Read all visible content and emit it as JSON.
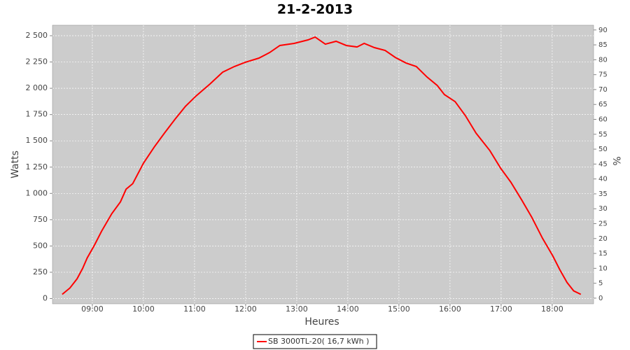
{
  "chart_data": {
    "type": "line",
    "title": "21-2-2013",
    "x_label": "Heures",
    "y_label": "Watts",
    "y2_label": "%",
    "xlim": [
      8.22,
      18.81
    ],
    "xticks": [
      {
        "value": 9,
        "label": "09:00"
      },
      {
        "value": 10,
        "label": "10:00"
      },
      {
        "value": 11,
        "label": "11:00"
      },
      {
        "value": 12,
        "label": "12:00"
      },
      {
        "value": 13,
        "label": "13:00"
      },
      {
        "value": 14,
        "label": "14:00"
      },
      {
        "value": 15,
        "label": "15:00"
      },
      {
        "value": 16,
        "label": "16:00"
      },
      {
        "value": 17,
        "label": "17:00"
      },
      {
        "value": 18,
        "label": "18:00"
      }
    ],
    "ylim": [
      -50,
      2600
    ],
    "yticks": [
      0,
      250,
      500,
      750,
      {
        "value": 1000,
        "label": "1 000"
      },
      {
        "value": 1250,
        "label": "1 250"
      },
      {
        "value": 1500,
        "label": "1 500"
      },
      {
        "value": 1750,
        "label": "1 750"
      },
      {
        "value": 2000,
        "label": "2 000"
      },
      {
        "value": 2250,
        "label": "2 250"
      },
      {
        "value": 2500,
        "label": "2 500"
      }
    ],
    "y2lim": [
      -1.9,
      91.6
    ],
    "y2ticks": [
      0,
      5,
      10,
      15,
      20,
      25,
      30,
      35,
      40,
      45,
      50,
      55,
      60,
      65,
      70,
      75,
      80,
      85,
      90
    ],
    "grid": true,
    "legend": "bottom",
    "series": [
      {
        "name": "SB 3000TL-20( 16,7 kWh )",
        "color": "#ff0000",
        "x": [
          8.41,
          8.56,
          8.7,
          8.81,
          8.9,
          9.04,
          9.18,
          9.38,
          9.55,
          9.66,
          9.79,
          10.0,
          10.21,
          10.41,
          10.62,
          10.82,
          11.03,
          11.3,
          11.55,
          11.78,
          11.99,
          12.26,
          12.47,
          12.67,
          12.95,
          13.22,
          13.36,
          13.56,
          13.77,
          13.97,
          14.18,
          14.32,
          14.52,
          14.73,
          14.93,
          15.14,
          15.34,
          15.55,
          15.75,
          15.89,
          16.1,
          16.3,
          16.51,
          16.78,
          16.99,
          17.19,
          17.4,
          17.6,
          17.81,
          18.01,
          18.15,
          18.29,
          18.42,
          18.56
        ],
        "values": [
          40,
          100,
          187,
          287,
          387,
          507,
          640,
          807,
          920,
          1040,
          1093,
          1287,
          1440,
          1573,
          1707,
          1827,
          1927,
          2040,
          2153,
          2207,
          2247,
          2287,
          2340,
          2407,
          2427,
          2460,
          2487,
          2420,
          2447,
          2407,
          2393,
          2427,
          2387,
          2360,
          2293,
          2240,
          2207,
          2107,
          2027,
          1940,
          1873,
          1740,
          1573,
          1407,
          1240,
          1107,
          940,
          773,
          573,
          407,
          273,
          153,
          73,
          40
        ]
      }
    ]
  }
}
